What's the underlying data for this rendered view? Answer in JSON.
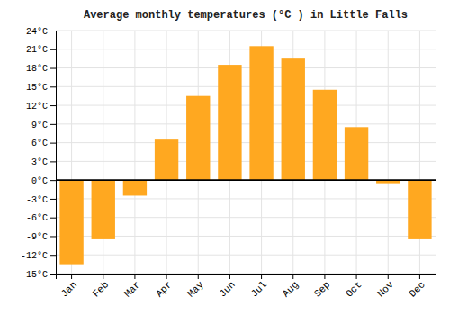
{
  "chart_data": {
    "type": "bar",
    "title": "Average monthly temperatures (°C ) in Little Falls",
    "categories": [
      "Jan",
      "Feb",
      "Mar",
      "Apr",
      "May",
      "Jun",
      "Jul",
      "Aug",
      "Sep",
      "Oct",
      "Nov",
      "Dec"
    ],
    "values": [
      -13.5,
      -9.5,
      -2.5,
      6.5,
      13.5,
      18.5,
      21.5,
      19.5,
      14.5,
      8.5,
      -0.5,
      -9.5
    ],
    "color": "#FFA820",
    "ylim": [
      -15,
      24
    ],
    "yticks": [
      {
        "value": -15,
        "label": "-15°C"
      },
      {
        "value": -12,
        "label": "-12°C"
      },
      {
        "value": -9,
        "label": "-9°C"
      },
      {
        "value": -6,
        "label": "-6°C"
      },
      {
        "value": -3,
        "label": "-3°C"
      },
      {
        "value": 0,
        "label": "0°C"
      },
      {
        "value": 3,
        "label": "3°C"
      },
      {
        "value": 6,
        "label": "6°C"
      },
      {
        "value": 9,
        "label": "9°C"
      },
      {
        "value": 12,
        "label": "12°C"
      },
      {
        "value": 15,
        "label": "15°C"
      },
      {
        "value": 18,
        "label": "18°C"
      },
      {
        "value": 21,
        "label": "21°C"
      },
      {
        "value": 24,
        "label": "24°C"
      }
    ],
    "grid": true
  }
}
